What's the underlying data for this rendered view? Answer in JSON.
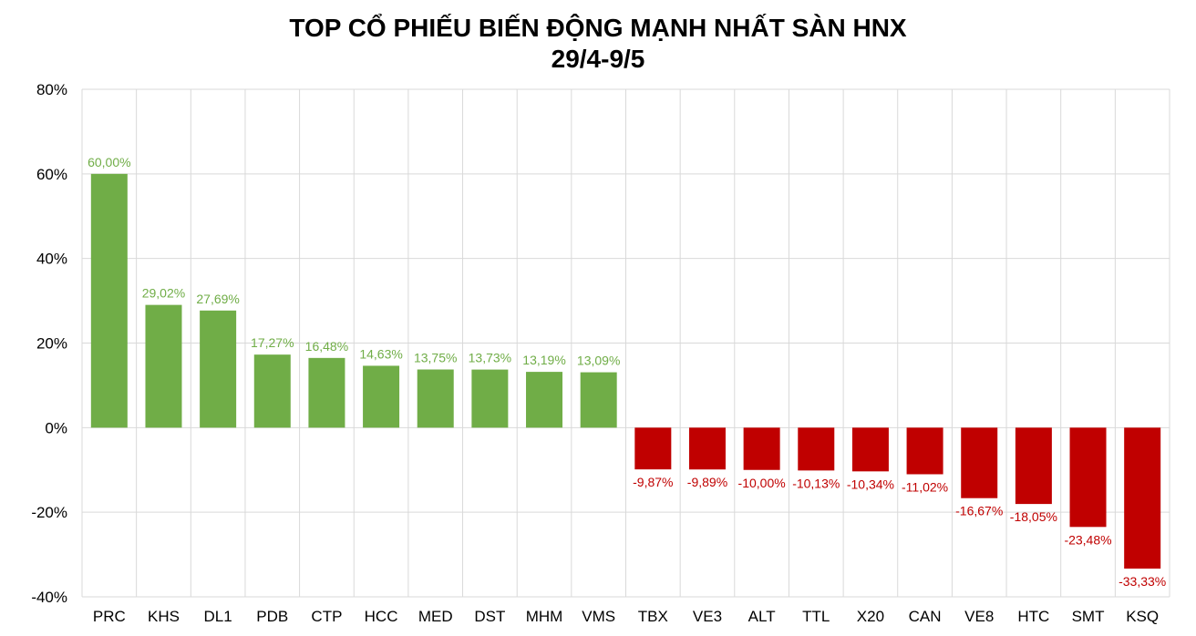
{
  "chart_data": {
    "type": "bar",
    "title": "TOP CỔ PHIẾU BIẾN ĐỘNG MẠNH NHẤT SÀN HNX",
    "subtitle": "29/4-9/5",
    "categories": [
      "PRC",
      "KHS",
      "DL1",
      "PDB",
      "CTP",
      "HCC",
      "MED",
      "DST",
      "MHM",
      "VMS",
      "TBX",
      "VE3",
      "ALT",
      "TTL",
      "X20",
      "CAN",
      "VE8",
      "HTC",
      "SMT",
      "KSQ"
    ],
    "values": [
      60.0,
      29.02,
      27.69,
      17.27,
      16.48,
      14.63,
      13.75,
      13.73,
      13.19,
      13.09,
      -9.87,
      -9.89,
      -10.0,
      -10.13,
      -10.34,
      -11.02,
      -16.67,
      -18.05,
      -23.48,
      -33.33
    ],
    "data_labels": [
      "60,00%",
      "29,02%",
      "27,69%",
      "17,27%",
      "16,48%",
      "14,63%",
      "13,75%",
      "13,73%",
      "13,19%",
      "13,09%",
      "-9,87%",
      "-9,89%",
      "-10,00%",
      "-10,13%",
      "-10,34%",
      "-11,02%",
      "-16,67%",
      "-18,05%",
      "-23,48%",
      "-33,33%"
    ],
    "ylim": [
      -40,
      80
    ],
    "yticks": [
      80,
      60,
      40,
      20,
      0,
      -20,
      -40
    ],
    "ytick_labels": [
      "80%",
      "60%",
      "40%",
      "20%",
      "0%",
      "-20%",
      "-40%"
    ],
    "xlabel": "",
    "ylabel": "",
    "grid": true,
    "colors": {
      "positive": "#70AD47",
      "negative": "#C00000",
      "grid": "#D9D9D9",
      "axis_text": "#000000"
    }
  }
}
